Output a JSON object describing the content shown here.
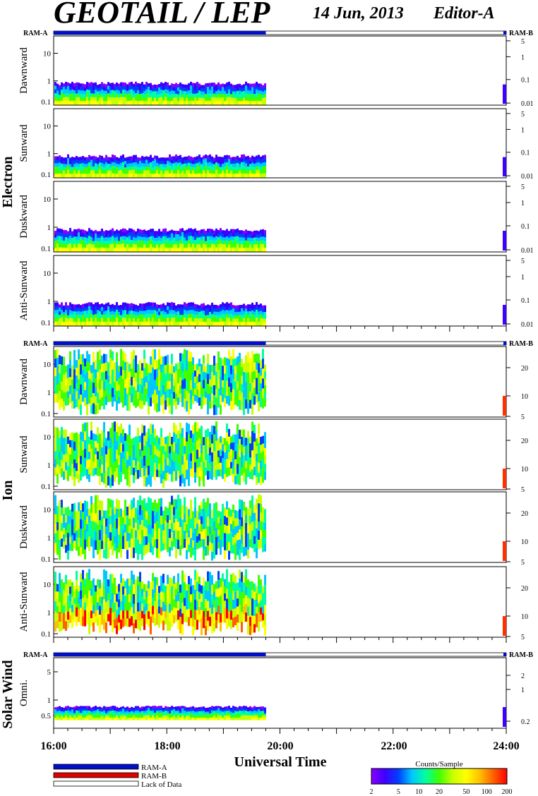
{
  "header": {
    "title": "GEOTAIL / LEP",
    "date": "14 Jun, 2013",
    "editor": "Editor-A"
  },
  "ram_a_label": "RAM-A",
  "ram_b_label": "RAM-B",
  "groups": [
    {
      "name": "Electron"
    },
    {
      "name": "Ion"
    },
    {
      "name": "Solar Wind"
    }
  ],
  "panels": [
    {
      "id": "e-dawn",
      "group": "Electron",
      "label": "Dawnward",
      "left_ticks": [
        "10",
        "1",
        "0.1"
      ],
      "right_ticks": [
        "5",
        "1",
        "0.1",
        "0.01"
      ]
    },
    {
      "id": "e-sun",
      "group": "Electron",
      "label": "Sunward",
      "left_ticks": [
        "10",
        "1",
        "0.1"
      ],
      "right_ticks": [
        "5",
        "1",
        "0.1",
        "0.01"
      ]
    },
    {
      "id": "e-dusk",
      "group": "Electron",
      "label": "Duskward",
      "left_ticks": [
        "10",
        "1",
        "0.1"
      ],
      "right_ticks": [
        "5",
        "1",
        "0.1",
        "0.01"
      ]
    },
    {
      "id": "e-anti",
      "group": "Electron",
      "label": "Anti-Sunward",
      "left_ticks": [
        "10",
        "1",
        "0.1"
      ],
      "right_ticks": [
        "5",
        "1",
        "0.1",
        "0.01"
      ]
    },
    {
      "id": "i-dawn",
      "group": "Ion",
      "label": "Dawnward",
      "left_ticks": [
        "10",
        "1",
        "0.1"
      ],
      "right_ticks": [
        "20",
        "10",
        "5"
      ]
    },
    {
      "id": "i-sun",
      "group": "Ion",
      "label": "Sunward",
      "left_ticks": [
        "10",
        "1",
        "0.1"
      ],
      "right_ticks": [
        "20",
        "10",
        "5"
      ]
    },
    {
      "id": "i-dusk",
      "group": "Ion",
      "label": "Duskward",
      "left_ticks": [
        "10",
        "1",
        "0.1"
      ],
      "right_ticks": [
        "20",
        "10",
        "5"
      ]
    },
    {
      "id": "i-anti",
      "group": "Ion",
      "label": "Anti-Sunward",
      "left_ticks": [
        "10",
        "1",
        "0.1"
      ],
      "right_ticks": [
        "20",
        "10",
        "5"
      ]
    },
    {
      "id": "sw-omni",
      "group": "Solar Wind",
      "label": "Omni.",
      "left_ticks": [
        "5",
        "1",
        "0.5"
      ],
      "right_ticks": [
        "2",
        "1",
        "0.2"
      ]
    }
  ],
  "chart_data": {
    "type": "heatmap",
    "xlabel": "Universal Time",
    "x_ticks": [
      "16:00",
      "18:00",
      "20:00",
      "22:00",
      "24:00"
    ],
    "x_range_hours": [
      16,
      24
    ],
    "data_end_hour": 19.75,
    "ram_a_intervals_hours": [
      [
        16,
        19.75
      ],
      [
        23.95,
        24
      ]
    ],
    "colorbar": {
      "label": "Counts/Sample",
      "ticks": [
        "2",
        "5",
        "10",
        "20",
        "50",
        "100",
        "200"
      ],
      "stops": [
        "#8a00ff",
        "#3d00ff",
        "#0040ff",
        "#00c8ff",
        "#00ffa0",
        "#40ff00",
        "#c8ff00",
        "#ffff00",
        "#ffc000",
        "#ff6000",
        "#ff0000"
      ]
    }
  },
  "legend": [
    {
      "label": "RAM-A",
      "color": "#0010c8"
    },
    {
      "label": "RAM-B",
      "color": "#e00000"
    },
    {
      "label": "Lack of Data",
      "color": "#ffffff"
    }
  ]
}
